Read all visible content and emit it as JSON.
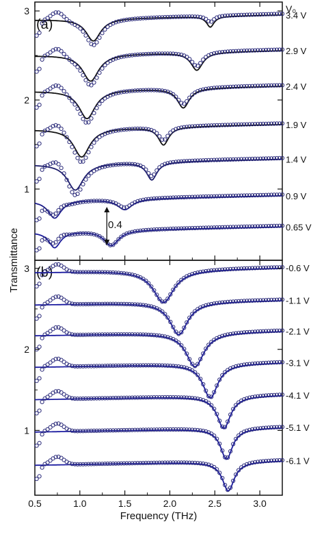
{
  "chart_data": [
    {
      "panel_label": "(a)",
      "type": "line",
      "xlabel": "Frequency (THz)",
      "ylabel": "Transmittance",
      "xlim": [
        0.5,
        3.25
      ],
      "ylim": [
        0.2,
        3.1
      ],
      "y_ticks": [
        "1",
        "2",
        "3"
      ],
      "x_ticks": [],
      "legend_title": "V₀",
      "annotation": "0.4",
      "annotation_arrow": {
        "x": 1.3,
        "y_from": 0.37,
        "y_to": 0.8
      },
      "series": [
        {
          "name": "3.4 V",
          "offset": 2.9,
          "fit_color": "#111111",
          "dips": [
            [
              1.15,
              0.25,
              0.1
            ],
            [
              2.45,
              0.12,
              0.05
            ]
          ],
          "data_dips": [
            [
              1.15,
              0.3,
              0.11
            ],
            [
              2.45,
              0.07,
              0.05
            ]
          ]
        },
        {
          "name": "2.9 V",
          "offset": 2.5,
          "fit_color": "#111111",
          "dips": [
            [
              1.12,
              0.3,
              0.11
            ],
            [
              2.3,
              0.2,
              0.08
            ]
          ],
          "data_dips": [
            [
              1.12,
              0.35,
              0.12
            ],
            [
              2.3,
              0.16,
              0.08
            ]
          ]
        },
        {
          "name": "2.4 V",
          "offset": 2.1,
          "fit_color": "#111111",
          "dips": [
            [
              1.08,
              0.32,
              0.11
            ],
            [
              2.15,
              0.22,
              0.08
            ]
          ],
          "data_dips": [
            [
              1.08,
              0.37,
              0.12
            ],
            [
              2.15,
              0.18,
              0.09
            ]
          ]
        },
        {
          "name": "1.9 V",
          "offset": 1.67,
          "fit_color": "#111111",
          "dips": [
            [
              1.02,
              0.32,
              0.11
            ],
            [
              1.93,
              0.2,
              0.07
            ]
          ],
          "data_dips": [
            [
              1.02,
              0.38,
              0.12
            ],
            [
              1.93,
              0.15,
              0.07
            ]
          ]
        },
        {
          "name": "1.4 V",
          "offset": 1.28,
          "fit_color": "#1c1c6a",
          "dips": [
            [
              0.95,
              0.3,
              0.11
            ],
            [
              1.8,
              0.2,
              0.07
            ]
          ],
          "data_dips": [
            [
              0.95,
              0.36,
              0.12
            ],
            [
              1.8,
              0.16,
              0.07
            ]
          ]
        },
        {
          "name": "0.9 V",
          "offset": 0.87,
          "fit_color": "#1c1c8a",
          "dips": [
            [
              0.72,
              0.2,
              0.09
            ],
            [
              1.5,
              0.12,
              0.1
            ]
          ],
          "data_dips": [
            [
              0.72,
              0.25,
              0.1
            ],
            [
              1.5,
              0.1,
              0.1
            ]
          ]
        },
        {
          "name": "0.65 V",
          "offset": 0.52,
          "fit_color": "#1c1c9a",
          "dips": [
            [
              0.72,
              0.18,
              0.08
            ],
            [
              1.35,
              0.17,
              0.1
            ]
          ],
          "data_dips": [
            [
              0.72,
              0.22,
              0.09
            ],
            [
              1.35,
              0.17,
              0.1
            ]
          ]
        }
      ]
    },
    {
      "panel_label": "(b)",
      "type": "line",
      "xlabel": "Frequency (THz)",
      "ylabel": "Transmittance",
      "xlim": [
        0.5,
        3.25
      ],
      "ylim": [
        0.2,
        3.1
      ],
      "y_ticks": [
        "1",
        "2",
        "3"
      ],
      "x_ticks": [
        "0.5",
        "1.0",
        "1.5",
        "2.0",
        "2.5",
        "3.0"
      ],
      "series": [
        {
          "name": "-0.6 V",
          "offset": 2.95,
          "fit_color": "#1c1ca0",
          "dips": [
            [
              1.93,
              0.4,
              0.14
            ]
          ]
        },
        {
          "name": "-1.1 V",
          "offset": 2.55,
          "fit_color": "#1c1ca0",
          "dips": [
            [
              2.1,
              0.4,
              0.12
            ]
          ]
        },
        {
          "name": "-2.1 V",
          "offset": 2.17,
          "fit_color": "#1c1ca0",
          "dips": [
            [
              2.28,
              0.42,
              0.12
            ]
          ]
        },
        {
          "name": "-3.1 V",
          "offset": 1.78,
          "fit_color": "#1c1ca0",
          "dips": [
            [
              2.45,
              0.42,
              0.1
            ]
          ]
        },
        {
          "name": "-4.1 V",
          "offset": 1.38,
          "fit_color": "#1c1ca0",
          "dips": [
            [
              2.6,
              0.4,
              0.09
            ]
          ]
        },
        {
          "name": "-5.1 V",
          "offset": 0.98,
          "fit_color": "#1c1ca0",
          "dips": [
            [
              2.63,
              0.38,
              0.08
            ]
          ]
        },
        {
          "name": "-6.1 V",
          "offset": 0.57,
          "fit_color": "#1c1ca0",
          "dips": [
            [
              2.65,
              0.36,
              0.08
            ]
          ]
        }
      ]
    }
  ],
  "colors": {
    "markers": "#2b2b7a",
    "frame": "#111111"
  }
}
